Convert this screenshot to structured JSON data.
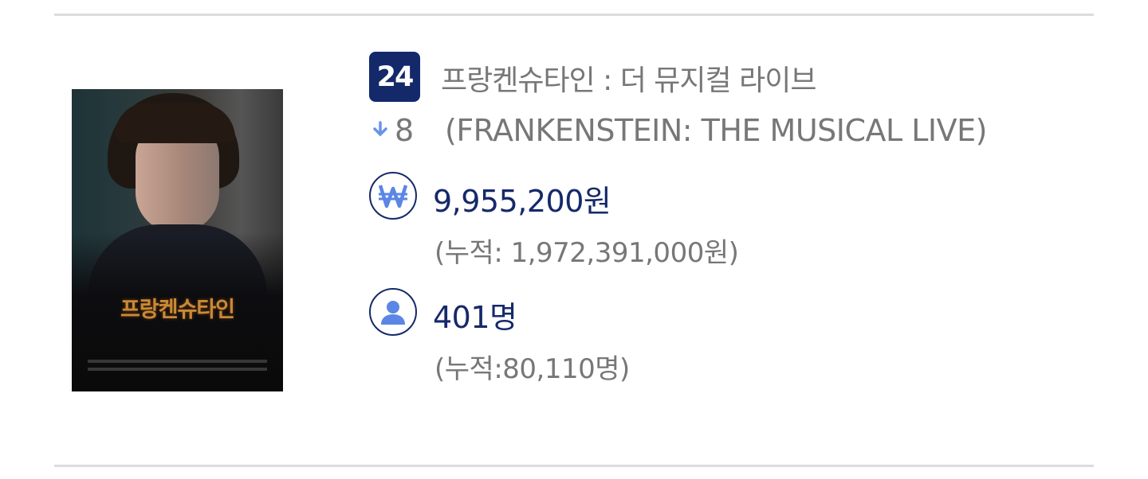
{
  "item": {
    "rank": "24",
    "rank_change": "8",
    "rank_direction": "down",
    "title_ko": "프랑켄슈타인 : 더 뮤지컬 라이브",
    "title_en": "(FRANKENSTEIN: THE MUSICAL LIVE)",
    "poster_title": "프랑켄슈타인",
    "sales": "9,955,200원",
    "sales_cumulative": "(누적: 1,972,391,000원)",
    "audience": "401명",
    "audience_cumulative": "(누적:80,110명)"
  },
  "colors": {
    "accent": "#13296a",
    "icon_blue": "#5b86e5",
    "text_gray": "#777777"
  },
  "icons": {
    "rank_change": "arrow-down-icon",
    "sales": "won-icon",
    "audience": "person-icon"
  }
}
